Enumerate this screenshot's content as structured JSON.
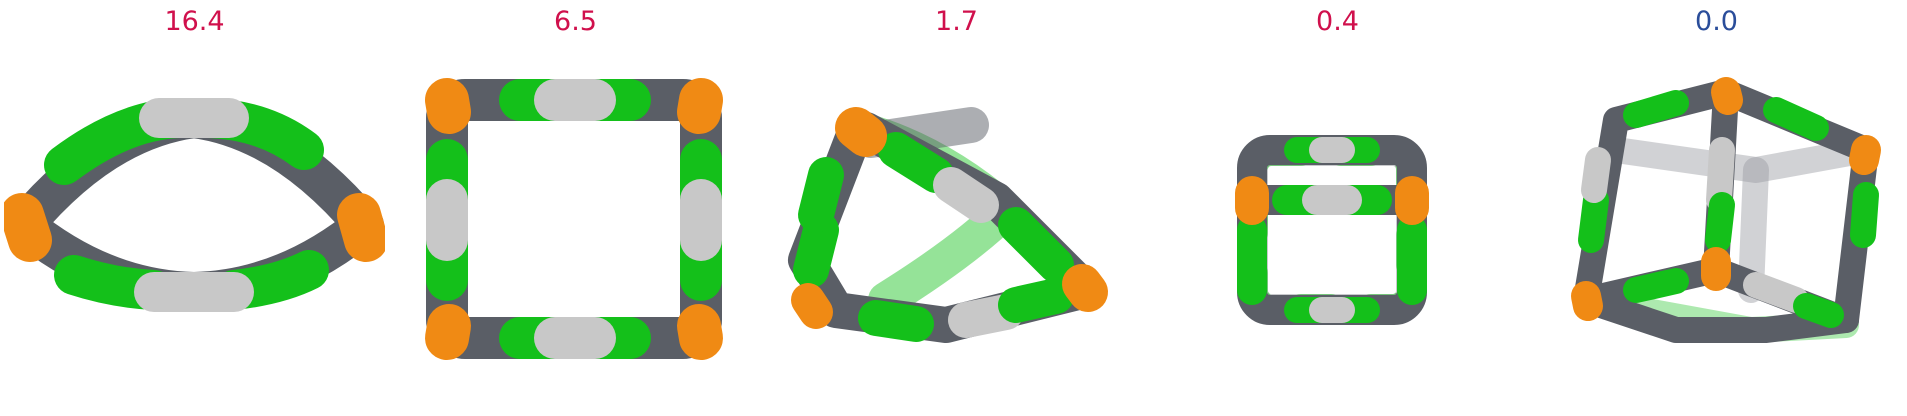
{
  "panels": [
    {
      "value": "16.4",
      "color": "#d0104c",
      "shape": "flattened-ring"
    },
    {
      "value": "6.5",
      "color": "#d0104c",
      "shape": "square-ring"
    },
    {
      "value": "1.7",
      "color": "#d0104c",
      "shape": "folded-triangular-loop"
    },
    {
      "value": "0.4",
      "color": "#d0104c",
      "shape": "cage-box"
    },
    {
      "value": "0.0",
      "color": "#2a4d9a",
      "shape": "cube-cage"
    }
  ],
  "palette": {
    "green": "#14c01a",
    "gray": "#5a5e66",
    "silver": "#c8c8c8",
    "orange": "#f08a14"
  }
}
